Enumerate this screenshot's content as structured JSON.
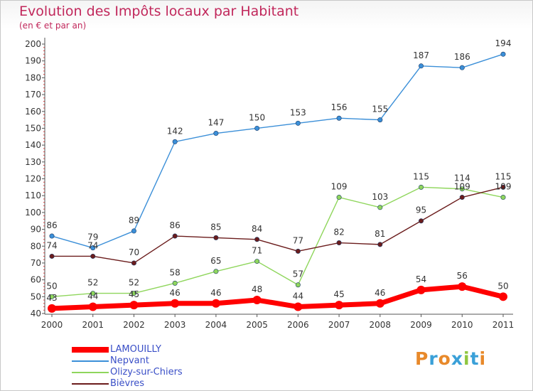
{
  "chart_data": {
    "type": "line",
    "title": "Evolution des Impôts locaux par Habitant",
    "subtitle": "(en € et par an)",
    "xlabel": "",
    "ylabel": "",
    "x": [
      "2000",
      "2001",
      "2002",
      "2003",
      "2004",
      "2005",
      "2006",
      "2007",
      "2008",
      "2009",
      "2010",
      "2011"
    ],
    "ylim": [
      40,
      200
    ],
    "yticks": [
      40,
      50,
      60,
      70,
      80,
      90,
      100,
      110,
      120,
      130,
      140,
      150,
      160,
      170,
      180,
      190,
      200
    ],
    "grid": false,
    "legend_position": "bottom-left",
    "series": [
      {
        "name": "LAMOUILLY",
        "color": "#ff0000",
        "emphasis": true,
        "values": [
          43,
          44,
          45,
          46,
          46,
          48,
          44,
          45,
          46,
          54,
          56,
          50
        ],
        "labels": [
          "43",
          "44",
          "45",
          "46",
          "46",
          "48",
          "44",
          "45",
          "46",
          "54",
          "56",
          "50"
        ]
      },
      {
        "name": "Nepvant",
        "color": "#3b8fd8",
        "values": [
          86,
          79,
          89,
          142,
          147,
          150,
          153,
          156,
          155,
          187,
          186,
          194
        ],
        "labels": [
          "86",
          "79",
          "89",
          "142",
          "147",
          "150",
          "153",
          "156",
          "155",
          "187",
          "186",
          "194"
        ]
      },
      {
        "name": "Olizy-sur-Chiers",
        "color": "#8fd65c",
        "values": [
          50,
          52,
          52,
          58,
          65,
          71,
          57,
          109,
          103,
          115,
          114,
          109
        ],
        "labels": [
          "50",
          "52",
          "52",
          "58",
          "65",
          "71",
          "57",
          "109",
          "103",
          "115",
          "114",
          "109"
        ]
      },
      {
        "name": "Bièvres",
        "color": "#6b1c1c",
        "values": [
          74,
          74,
          70,
          86,
          85,
          84,
          77,
          82,
          81,
          95,
          109,
          115
        ],
        "labels": [
          "74",
          "74",
          "70",
          "86",
          "85",
          "84",
          "77",
          "82",
          "81",
          "95",
          "109",
          "115"
        ]
      }
    ]
  },
  "branding": {
    "logo_text": "Proxiti"
  }
}
